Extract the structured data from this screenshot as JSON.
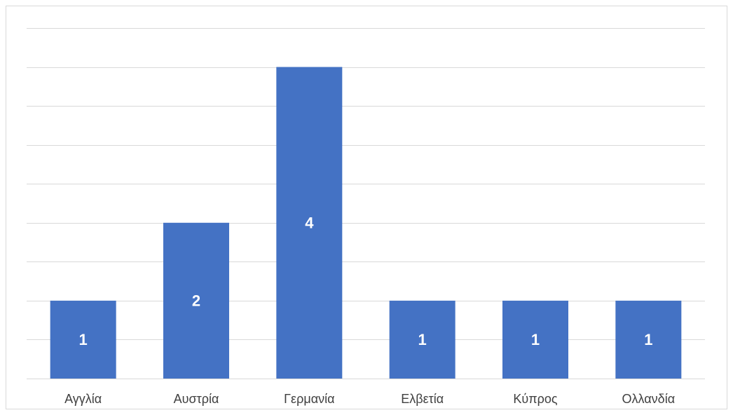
{
  "chart_data": {
    "type": "bar",
    "title": "",
    "xlabel": "",
    "ylabel": "",
    "categories": [
      "Αγγλία",
      "Αυστρία",
      "Γερμανία",
      "Ελβετία",
      "Κύπρος",
      "Ολλανδία"
    ],
    "values": [
      1,
      2,
      4,
      1,
      1,
      1
    ],
    "ylim": [
      0,
      4.5
    ],
    "grid": true,
    "legend": "none",
    "y_axis_labels_visible": false,
    "data_labels": true
  },
  "colors": {
    "bar": "#4472c4",
    "gridline": "#d9d9d9",
    "data_label": "#ffffff",
    "tick_label": "#404040"
  }
}
